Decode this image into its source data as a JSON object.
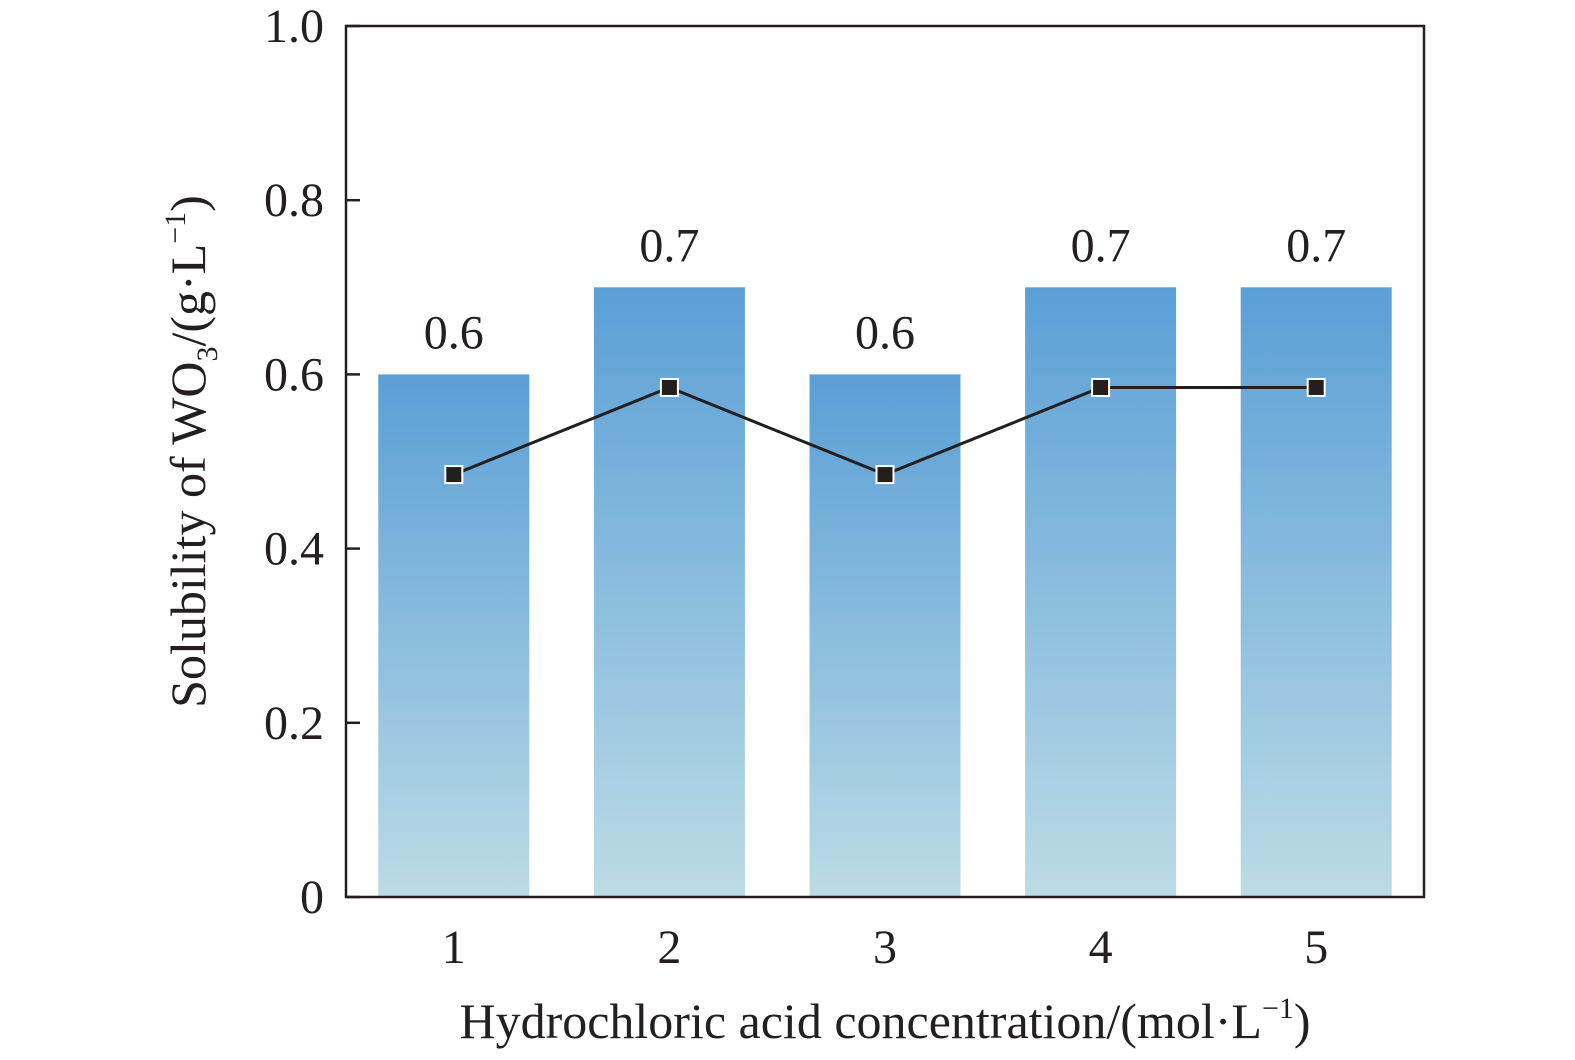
{
  "chart_data": {
    "type": "bar",
    "categories": [
      "1",
      "2",
      "3",
      "4",
      "5"
    ],
    "values": [
      0.6,
      0.7,
      0.6,
      0.7,
      0.7
    ],
    "value_labels": [
      "0.6",
      "0.7",
      "0.6",
      "0.7",
      "0.7"
    ],
    "line_series": {
      "values": [
        0.485,
        0.585,
        0.485,
        0.585,
        0.585
      ],
      "color": "#231f20",
      "marker": "square"
    },
    "xlabel": "Hydrochloric acid concentration/(mol·L−1)",
    "ylabel": "Solubility of WO3/(g·L−1)",
    "ylim": [
      0,
      1.0
    ],
    "yticks": [
      "0",
      "0.2",
      "0.4",
      "0.6",
      "0.8",
      "1.0"
    ],
    "grid": false,
    "bar_color_top": "#5a9fd6",
    "bar_color_bottom": "#bcdbe6"
  }
}
